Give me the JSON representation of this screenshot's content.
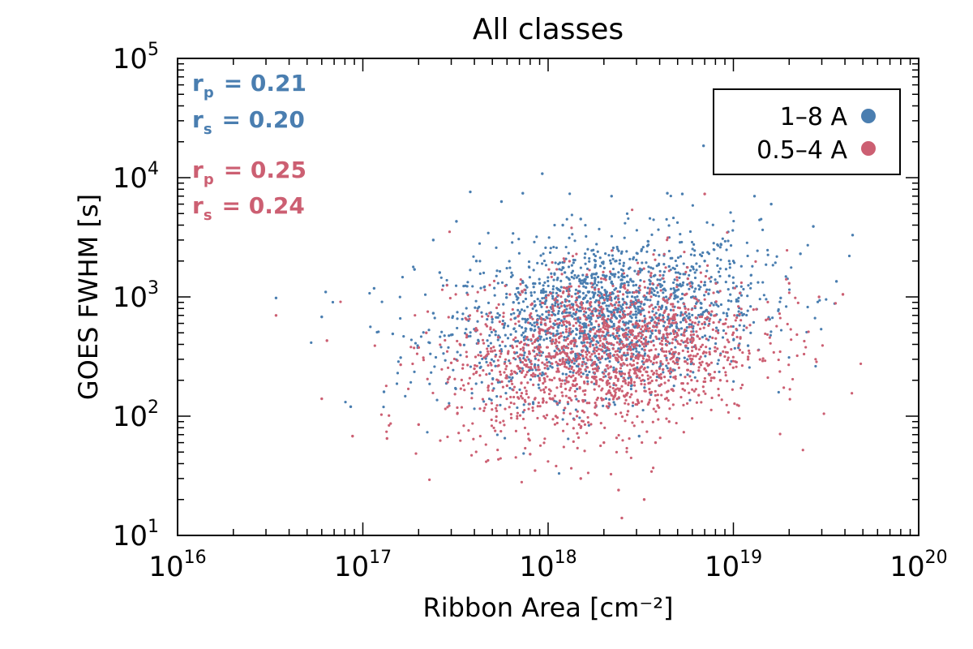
{
  "chart_data": {
    "type": "scatter",
    "title": "All classes",
    "xlabel": "Ribbon Area [cm⁻²]",
    "ylabel": "GOES FWHM [s]",
    "xscale": "log",
    "yscale": "log",
    "xlim": [
      1e+16,
      1e+20
    ],
    "ylim": [
      10,
      100000
    ],
    "x_ticks": [
      {
        "value": 1e+16,
        "base": "10",
        "exp": "16"
      },
      {
        "value": 1e+17,
        "base": "10",
        "exp": "17"
      },
      {
        "value": 1e+18,
        "base": "10",
        "exp": "18"
      },
      {
        "value": 1e+19,
        "base": "10",
        "exp": "19"
      },
      {
        "value": 1e+20,
        "base": "10",
        "exp": "20"
      }
    ],
    "y_ticks": [
      {
        "value": 10,
        "base": "10",
        "exp": "1"
      },
      {
        "value": 100,
        "base": "10",
        "exp": "2"
      },
      {
        "value": 1000,
        "base": "10",
        "exp": "3"
      },
      {
        "value": 10000,
        "base": "10",
        "exp": "4"
      },
      {
        "value": 100000,
        "base": "10",
        "exp": "5"
      }
    ],
    "legend": {
      "position": "top-right",
      "entries": [
        {
          "label": "1–8 A",
          "color": "#4a7eb0"
        },
        {
          "label": "0.5–4 A",
          "color": "#cc5f72"
        }
      ]
    },
    "annotations": [
      {
        "series": "1–8 A",
        "label_main": "r",
        "label_sub": "p",
        "eq": "= 0.21",
        "color": "#4a7eb0"
      },
      {
        "series": "1–8 A",
        "label_main": "r",
        "label_sub": "s",
        "eq": "= 0.20",
        "color": "#4a7eb0"
      },
      {
        "series": "0.5–4 A",
        "label_main": "r",
        "label_sub": "p",
        "eq": "= 0.25",
        "color": "#cc5f72"
      },
      {
        "series": "0.5–4 A",
        "label_main": "r",
        "label_sub": "s",
        "eq": "= 0.24",
        "color": "#cc5f72"
      }
    ],
    "series": [
      {
        "name": "1–8 A",
        "color": "#4a7eb0",
        "points": [
          [
            3.4e+16,
            980
          ],
          [
            6.3e+16,
            1100
          ],
          [
            6e+16,
            680
          ],
          [
            8.6e+16,
            120
          ],
          [
            1.15e+17,
            1180
          ],
          [
            1.45e+17,
            490
          ],
          [
            1.9e+17,
            1700
          ],
          [
            2.4e+17,
            3000
          ],
          [
            2.6e+17,
            1600
          ],
          [
            3.2e+17,
            4300
          ],
          [
            3.8e+17,
            7600
          ],
          [
            5.6e+17,
            6300
          ],
          [
            7.3e+17,
            7400
          ],
          [
            9.3e+17,
            10800
          ],
          [
            1.2e+18,
            4000
          ],
          [
            1.5e+18,
            4500
          ],
          [
            2.2e+18,
            7000
          ],
          [
            4.4e+18,
            7400
          ],
          [
            5.3e+18,
            7300
          ],
          [
            6.9e+18,
            18500
          ],
          [
            1.3e+19,
            7000
          ],
          [
            1.6e+19,
            6000
          ],
          [
            2.7e+19,
            3900
          ],
          [
            4.4e+19,
            3300
          ],
          [
            3.6e+19,
            1350
          ],
          [
            2.3e+19,
            2300
          ],
          [
            1.2e+19,
            390
          ],
          [
            1.8e+19,
            980
          ],
          [
            2.4e+17,
            730
          ],
          [
            3e+17,
            480
          ],
          [
            4.1e+17,
            2000
          ],
          [
            5e+17,
            650
          ],
          [
            1.3e+17,
            160
          ],
          [
            1.6e+17,
            310
          ],
          [
            6.5e+17,
            900
          ],
          [
            8e+17,
            600
          ],
          [
            9e+17,
            1300
          ],
          [
            1.1e+18,
            900
          ],
          [
            1.3e+18,
            500
          ],
          [
            1.6e+18,
            1200
          ],
          [
            1.8e+18,
            2000
          ],
          [
            2e+18,
            700
          ],
          [
            2.5e+18,
            1500
          ],
          [
            2.8e+18,
            900
          ],
          [
            3.2e+18,
            2500
          ],
          [
            3.6e+18,
            1100
          ],
          [
            4e+18,
            700
          ],
          [
            4.5e+18,
            1800
          ],
          [
            5e+18,
            1000
          ],
          [
            6e+18,
            1300
          ],
          [
            7e+18,
            2000
          ],
          [
            8e+18,
            900
          ],
          [
            9.5e+18,
            1500
          ],
          [
            1.05e+19,
            700
          ],
          [
            1.4e+18,
            300
          ],
          [
            2.2e+18,
            400
          ],
          [
            3e+18,
            350
          ],
          [
            1e+18,
            250
          ],
          [
            2.6e+18,
            200
          ],
          [
            3.1e+18,
            68
          ]
        ]
      },
      {
        "name": "0.5–4 A",
        "color": "#cc5f72",
        "points": [
          [
            3.4e+16,
            700
          ],
          [
            6e+16,
            140
          ],
          [
            6.4e+16,
            430
          ],
          [
            8.8e+16,
            68
          ],
          [
            1.35e+17,
            65
          ],
          [
            2e+17,
            85
          ],
          [
            1.6e+17,
            270
          ],
          [
            2.2e+17,
            500
          ],
          [
            3e+17,
            280
          ],
          [
            4e+17,
            250
          ],
          [
            5e+17,
            350
          ],
          [
            6e+17,
            180
          ],
          [
            8e+17,
            48
          ],
          [
            8.5e+17,
            35
          ],
          [
            1.5e+18,
            30
          ],
          [
            2.4e+18,
            24
          ],
          [
            2.5e+18,
            14
          ],
          [
            3.3e+18,
            20
          ],
          [
            1.5e+19,
            640
          ],
          [
            2.9e+19,
            1000
          ],
          [
            3.9e+19,
            1050
          ],
          [
            2e+19,
            1300
          ],
          [
            1e+19,
            500
          ],
          [
            7e+18,
            7300
          ],
          [
            1.2e+18,
            300
          ],
          [
            1.4e+18,
            180
          ],
          [
            1.6e+18,
            450
          ],
          [
            1.8e+18,
            250
          ],
          [
            2e+18,
            380
          ],
          [
            2.2e+18,
            150
          ],
          [
            2.5e+18,
            320
          ],
          [
            2.8e+18,
            500
          ],
          [
            3.2e+18,
            260
          ],
          [
            3.6e+18,
            420
          ],
          [
            4e+18,
            180
          ],
          [
            4.5e+18,
            600
          ],
          [
            5e+18,
            300
          ],
          [
            6e+18,
            450
          ],
          [
            7e+18,
            250
          ],
          [
            8e+18,
            700
          ],
          [
            9e+18,
            380
          ],
          [
            1e+18,
            500
          ],
          [
            9e+17,
            200
          ],
          [
            1.3e+18,
            700
          ],
          [
            1.7e+18,
            900
          ],
          [
            2.1e+18,
            650
          ],
          [
            2.4e+18,
            850
          ],
          [
            3e+18,
            1100
          ],
          [
            4.2e+18,
            950
          ],
          [
            5.5e+18,
            800
          ],
          [
            1.1e+18,
            100
          ],
          [
            1.5e+18,
            80
          ],
          [
            2e+18,
            60
          ],
          [
            2.7e+18,
            110
          ],
          [
            3.5e+18,
            130
          ],
          [
            4.5e+18,
            90
          ],
          [
            6.5e+18,
            150
          ],
          [
            1.2e+19,
            300
          ],
          [
            8.5e+18,
            200
          ],
          [
            3.8e+18,
            60
          ]
        ]
      }
    ]
  }
}
